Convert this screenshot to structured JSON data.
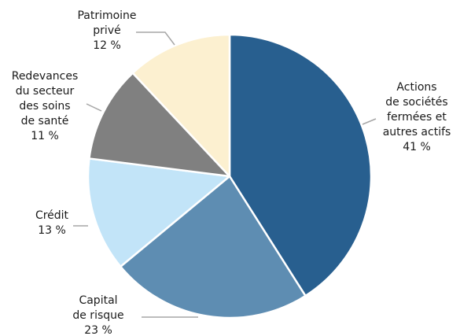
{
  "chart_data": {
    "type": "pie",
    "title": "",
    "start_angle_deg": 0,
    "direction": "clockwise",
    "slices": [
      {
        "label_lines": [
          "Actions",
          "de sociétés",
          "fermées et",
          "autres actifs"
        ],
        "value": 41,
        "value_label": "41 %",
        "color": "#285f8f"
      },
      {
        "label_lines": [
          "Capital",
          "de risque"
        ],
        "value": 23,
        "value_label": "23 %",
        "color": "#5e8db2"
      },
      {
        "label_lines": [
          "Crédit"
        ],
        "value": 13,
        "value_label": "13 %",
        "color": "#c2e4f8"
      },
      {
        "label_lines": [
          "Redevances",
          "du secteur",
          "des soins",
          "de santé"
        ],
        "value": 11,
        "value_label": "11 %",
        "color": "#808080"
      },
      {
        "label_lines": [
          "Patrimoine",
          "privé"
        ],
        "value": 12,
        "value_label": "12 %",
        "color": "#fcf0d0"
      }
    ],
    "slice_border_color": "#ffffff",
    "leader_line_color": "#a6a6a6",
    "legend": "none"
  }
}
